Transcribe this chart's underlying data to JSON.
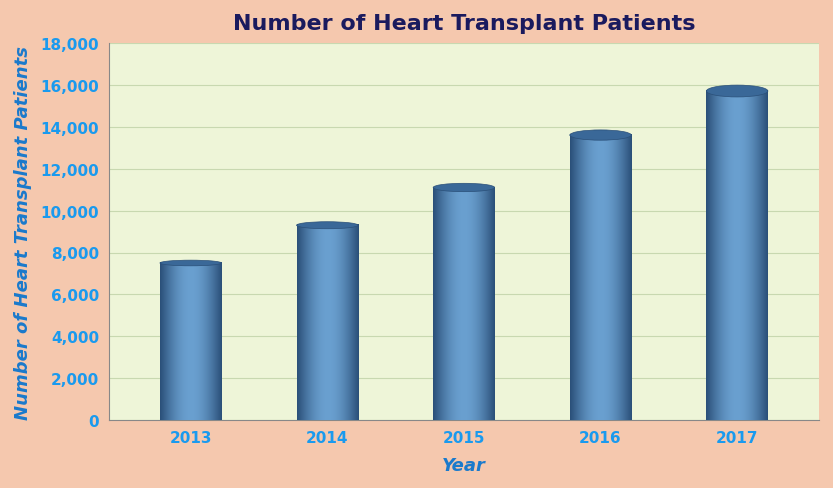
{
  "categories": [
    "2013",
    "2014",
    "2015",
    "2016",
    "2017"
  ],
  "values": [
    7500,
    9300,
    11100,
    13600,
    15700
  ],
  "bar_color_dark": "#2a4f78",
  "bar_color_mid": "#4a80b8",
  "bar_color_light": "#6aA0d0",
  "title": "Number of Heart Transplant Patients",
  "xlabel": "Year",
  "ylabel": "Number of Heart Transplant Patients",
  "ylim": [
    0,
    18000
  ],
  "yticks": [
    0,
    2000,
    4000,
    6000,
    8000,
    10000,
    12000,
    14000,
    16000,
    18000
  ],
  "figure_bg": "#f5c8ae",
  "plot_bg": "#eef5d8",
  "title_color": "#1a1a5e",
  "axis_label_color": "#1a7acc",
  "tick_label_color": "#1a9aee",
  "grid_color": "#c8d8b0",
  "title_fontsize": 16,
  "axis_label_fontsize": 13,
  "tick_fontsize": 11,
  "bar_width": 0.45
}
